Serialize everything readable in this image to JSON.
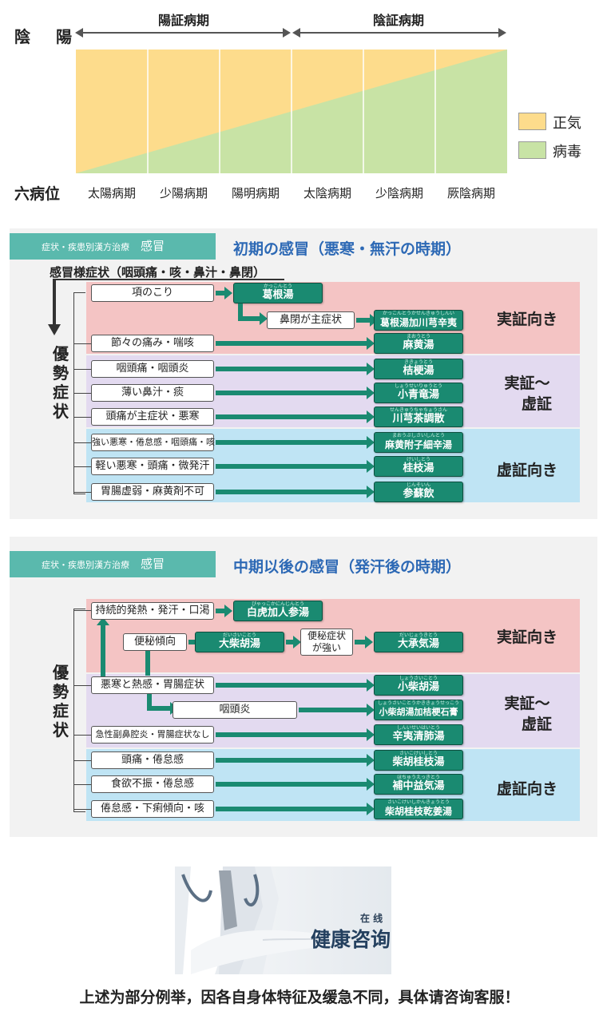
{
  "yinyang": {
    "left_label": "陰　陽",
    "yang_period": "陽証病期",
    "yin_period": "陰証病期",
    "row_label": "六病位",
    "stages": [
      "太陽病期",
      "少陽病期",
      "陽明病期",
      "太陰病期",
      "少陰病期",
      "厥陰病期"
    ],
    "legend": [
      {
        "label": "正気",
        "color": "#fddc8c"
      },
      {
        "label": "病毒",
        "color": "#c8e3a5"
      }
    ]
  },
  "panel1": {
    "tag_small": "症状・疾患別漢方治療",
    "tag_big": "感冒",
    "title": "初期の感冒（悪寒・無汗の時期）",
    "header": "感冒様症状（咽頭痛・咳・鼻汁・鼻閉）",
    "side_label": [
      "優",
      "勢",
      "症",
      "状"
    ],
    "bands": [
      {
        "label": "実証向き",
        "color": "#f4c4c4"
      },
      {
        "label": "実証～\n虚証",
        "color": "#e3daf0"
      },
      {
        "label": "虚証向き",
        "color": "#bfe4f4"
      }
    ],
    "symptoms": [
      "項のこり",
      "鼻閉が主症状",
      "節々の痛み・喘咳",
      "咽頭痛・咽頭炎",
      "薄い鼻汁・痰",
      "頭痛が主症状・悪寒",
      "強い悪寒・倦怠感・咽頭痛・咳",
      "軽い悪寒・頭痛・微発汗",
      "胃腸虚弱・麻黄剤不可"
    ],
    "herbs": [
      {
        "ruby": "かっこんとう",
        "name": "葛根湯"
      },
      {
        "ruby": "かっこんとうかせんきゅうしんい",
        "name": "葛根湯加川芎辛夷"
      },
      {
        "ruby": "まおうとう",
        "name": "麻黄湯"
      },
      {
        "ruby": "ききょうとう",
        "name": "桔梗湯"
      },
      {
        "ruby": "しょうせいりゅうとう",
        "name": "小青竜湯"
      },
      {
        "ruby": "せんきゅうちゃちょうさん",
        "name": "川芎茶調散"
      },
      {
        "ruby": "まおうぶしさいしんとう",
        "name": "麻黄附子細辛湯"
      },
      {
        "ruby": "けいしとう",
        "name": "桂枝湯"
      },
      {
        "ruby": "じんそいん",
        "name": "参蘇飲"
      }
    ]
  },
  "panel2": {
    "tag_small": "症状・疾患別漢方治療",
    "tag_big": "感冒",
    "title": "中期以後の感冒（発汗後の時期）",
    "side_label": [
      "優",
      "勢",
      "症",
      "状"
    ],
    "bands": [
      {
        "label": "実証向き",
        "color": "#f4c4c4"
      },
      {
        "label": "実証～\n虚証",
        "color": "#e3daf0"
      },
      {
        "label": "虚証向き",
        "color": "#bfe4f4"
      }
    ],
    "symptoms": [
      "持続的発熱・発汗・口渇",
      "便秘傾向",
      "便秘症状\nが強い",
      "悪寒と熱感・胃腸症状",
      "咽頭炎",
      "急性副鼻腔炎・胃腸症状なし",
      "頭痛・倦怠感",
      "食欲不振・倦怠感",
      "倦怠感・下痢傾向・咳"
    ],
    "herbs": [
      {
        "ruby": "びゃっこかにんじんとう",
        "name": "白虎加人参湯"
      },
      {
        "ruby": "だいさいことう",
        "name": "大柴胡湯"
      },
      {
        "ruby": "だいじょうきとう",
        "name": "大承気湯"
      },
      {
        "ruby": "しょうさいことう",
        "name": "小柴胡湯"
      },
      {
        "ruby": "しょうさいことうかききょうせっこう",
        "name": "小柴胡湯加桔梗石膏"
      },
      {
        "ruby": "しんいせいはいとう",
        "name": "辛夷清肺湯"
      },
      {
        "ruby": "さいこけいしとう",
        "name": "柴胡桂枝湯"
      },
      {
        "ruby": "ほちゅうえっきとう",
        "name": "補中益気湯"
      },
      {
        "ruby": "さいこけいしかんきょうとう",
        "name": "柴胡桂枝乾姜湯"
      }
    ]
  },
  "consult": {
    "small": "在 线",
    "big": "健康咨询"
  },
  "footer": "上述为部分例举，因各自身体特征及缓急不同，具体请咨询客服！"
}
